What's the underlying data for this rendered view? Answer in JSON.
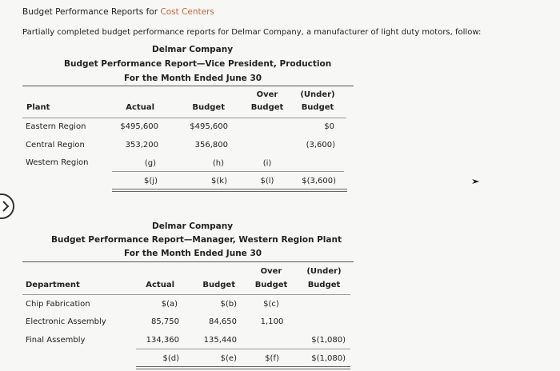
{
  "header": {
    "title_prefix": "Budget Performance Reports for ",
    "title_link": "Cost Centers",
    "intro": "Partially completed budget performance reports for Delmar Company, a manufacturer of light duty motors, follow:"
  },
  "report1": {
    "company": "Delmar Company",
    "title": "Budget Performance Report—Vice President, Production",
    "period": "For the Month Ended June 30",
    "col_first": "Plant",
    "col_actual": "Actual",
    "col_budget": "Budget",
    "col_over_1": "Over",
    "col_over_2": "Budget",
    "col_under_1": "(Under)",
    "col_under_2": "Budget",
    "rows": [
      {
        "name": "Eastern Region",
        "actual": "$495,600",
        "budget": "$495,600",
        "over": "",
        "under": "$0"
      },
      {
        "name": "Central Region",
        "actual": "353,200",
        "budget": "356,800",
        "over": "",
        "under": "(3,600)"
      },
      {
        "name": "Western Region",
        "actual": "(g)",
        "budget": "(h)",
        "over": "(i)",
        "under": ""
      }
    ],
    "total": {
      "actual": "$(j)",
      "budget": "$(k)",
      "over": "$(l)",
      "under": "$(3,600)"
    }
  },
  "report2": {
    "company": "Delmar Company",
    "title": "Budget Performance Report—Manager, Western Region Plant",
    "period": "For the Month Ended June 30",
    "col_first": "Department",
    "col_actual": "Actual",
    "col_budget": "Budget",
    "col_over_1": "Over",
    "col_over_2": "Budget",
    "col_under_1": "(Under)",
    "col_under_2": "Budget",
    "rows": [
      {
        "name": "Chip Fabrication",
        "actual": "$(a)",
        "budget": "$(b)",
        "over": "$(c)",
        "under": ""
      },
      {
        "name": "Electronic Assembly",
        "actual": "85,750",
        "budget": "84,650",
        "over": "1,100",
        "under": ""
      },
      {
        "name": "Final Assembly",
        "actual": "134,360",
        "budget": "135,440",
        "over": "",
        "under": "$(1,080)"
      }
    ],
    "total": {
      "actual": "$(d)",
      "budget": "$(e)",
      "over": "$(f)",
      "under": "$(1,080)"
    }
  }
}
